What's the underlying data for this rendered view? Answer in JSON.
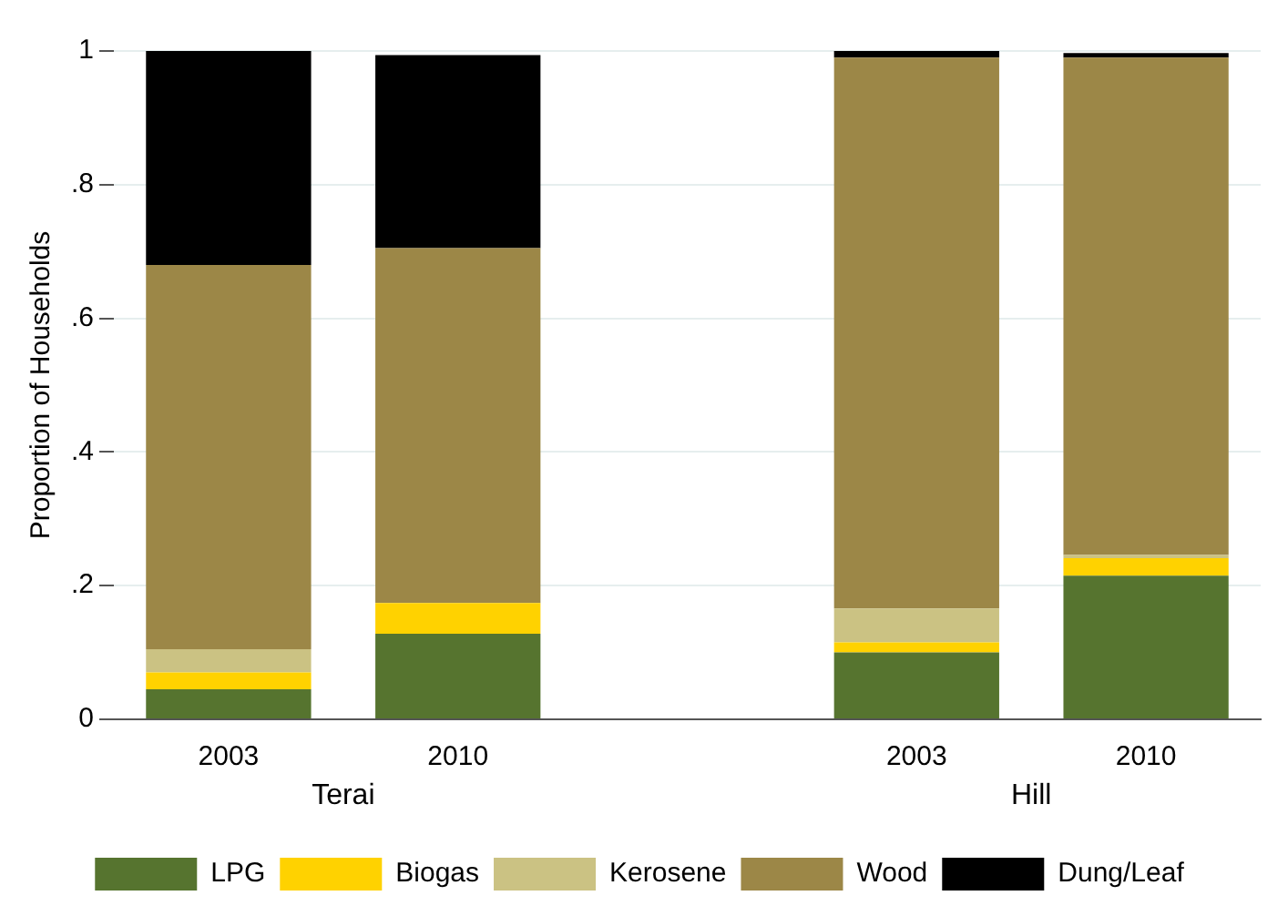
{
  "chart_data": {
    "type": "bar",
    "stacked": true,
    "ylabel": "Proportion of Households",
    "categories": [
      "2003",
      "2010",
      null,
      "2003",
      "2010"
    ],
    "series": [
      {
        "name": "LPG",
        "color": "#56742f",
        "values": [
          0.045,
          0.128,
          null,
          0.1,
          0.215
        ]
      },
      {
        "name": "Biogas",
        "color": "#ffd200",
        "values": [
          0.025,
          0.046,
          null,
          0.015,
          0.026
        ]
      },
      {
        "name": "Kerosene",
        "color": "#cbc283",
        "values": [
          0.035,
          0,
          null,
          0.051,
          0.005
        ]
      },
      {
        "name": "Wood",
        "color": "#9c8747",
        "values": [
          0.575,
          0.531,
          null,
          0.824,
          0.744
        ]
      },
      {
        "name": "Dung/Leaf",
        "color": "#000000",
        "values": [
          0.32,
          0.289,
          null,
          0.01,
          0.007
        ]
      }
    ],
    "annotations": [
      "Terai",
      "Hill"
    ],
    "ylim": [
      0,
      1
    ],
    "yticks": [
      0,
      {
        "value": 0.2,
        "label": ".2"
      },
      {
        "value": 0.4,
        "label": ".4"
      },
      {
        "value": 0.6,
        "label": ".6"
      },
      {
        "value": 0.8,
        "label": ".8"
      },
      1
    ],
    "grid": "y",
    "legend": "bottom"
  }
}
